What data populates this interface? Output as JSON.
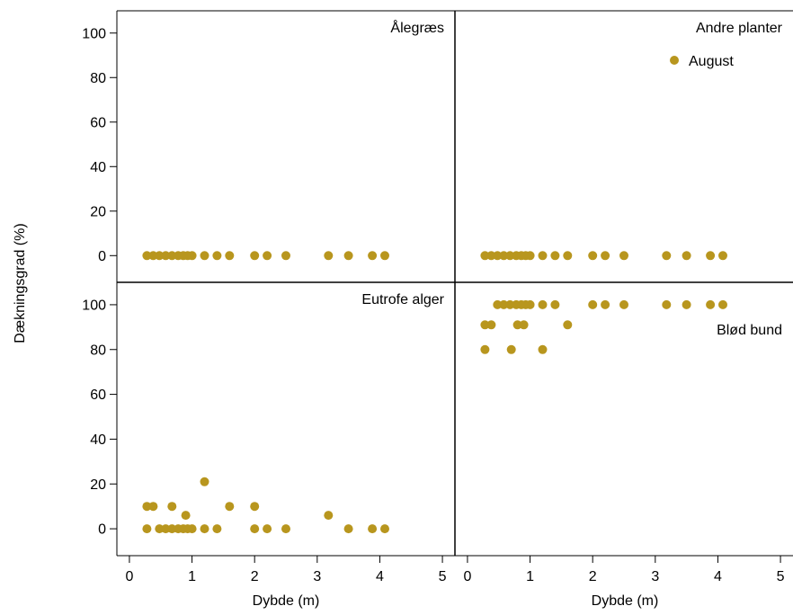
{
  "chart_data": {
    "type": "scatter",
    "ylabel": "Dækningsgrad (%)",
    "xlabel": "Dybde (m)",
    "legend": {
      "label": "August",
      "placement": "top-right"
    },
    "colors": {
      "marker": "#b8961e",
      "frame": "#000000"
    },
    "grid": false,
    "xlim": [
      -0.2,
      5.2
    ],
    "ylim": [
      -12,
      110
    ],
    "x_ticks": [
      "0",
      "1",
      "2",
      "3",
      "4",
      "5"
    ],
    "y_ticks": [
      "0",
      "20",
      "40",
      "60",
      "80",
      "100"
    ],
    "panels": [
      {
        "title": "Ålegræs",
        "x": [
          0.28,
          0.38,
          0.48,
          0.58,
          0.68,
          0.78,
          0.86,
          0.93,
          1.0,
          1.2,
          1.4,
          1.6,
          2.0,
          2.2,
          2.5,
          3.18,
          3.5,
          3.88,
          4.08
        ],
        "y": [
          0,
          0,
          0,
          0,
          0,
          0,
          0,
          0,
          0,
          0,
          0,
          0,
          0,
          0,
          0,
          0,
          0,
          0,
          0
        ]
      },
      {
        "title": "Andre planter",
        "x": [
          0.28,
          0.38,
          0.48,
          0.58,
          0.68,
          0.78,
          0.86,
          0.93,
          1.0,
          1.2,
          1.4,
          1.6,
          2.0,
          2.2,
          2.5,
          3.18,
          3.5,
          3.88,
          4.08
        ],
        "y": [
          0,
          0,
          0,
          0,
          0,
          0,
          0,
          0,
          0,
          0,
          0,
          0,
          0,
          0,
          0,
          0,
          0,
          0,
          0
        ]
      },
      {
        "title": "Eutrofe alger",
        "x": [
          0.28,
          0.38,
          0.28,
          0.48,
          0.58,
          0.68,
          0.68,
          0.78,
          0.86,
          0.9,
          0.93,
          1.0,
          1.2,
          1.2,
          1.4,
          1.6,
          2.0,
          2.0,
          2.2,
          2.5,
          3.18,
          3.5,
          3.88,
          4.08
        ],
        "y": [
          10,
          10,
          0,
          0,
          0,
          0,
          10,
          0,
          0,
          6,
          0,
          0,
          21,
          0,
          0,
          10,
          10,
          0,
          0,
          0,
          6,
          0,
          0,
          0
        ]
      },
      {
        "title": "Blød bund",
        "x": [
          0.28,
          0.38,
          0.28,
          0.48,
          0.58,
          0.68,
          0.78,
          0.86,
          0.93,
          1.0,
          0.7,
          0.8,
          0.9,
          1.2,
          1.2,
          1.4,
          1.6,
          2.0,
          2.2,
          2.5,
          3.18,
          3.5,
          3.88,
          4.08
        ],
        "y": [
          91,
          91,
          80,
          100,
          100,
          100,
          100,
          100,
          100,
          100,
          80,
          91,
          91,
          100,
          80,
          100,
          91,
          100,
          100,
          100,
          100,
          100,
          100,
          100
        ]
      }
    ]
  }
}
